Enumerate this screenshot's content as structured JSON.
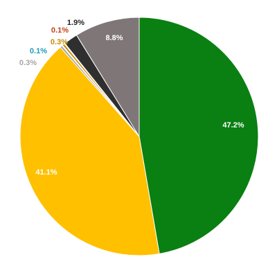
{
  "chart_data": {
    "type": "pie",
    "title": "",
    "series": [
      {
        "labels": [
          "Green slice",
          "Yellow slice",
          "Gray slice",
          "Blue slice",
          "Orange slice",
          "Red slice",
          "Black slice",
          "Dark gray slice"
        ],
        "values": [
          47.2,
          41.1,
          0.3,
          0.1,
          0.3,
          0.1,
          1.9,
          8.8
        ],
        "display_labels": [
          "47.2%",
          "41.1%",
          "0.3%",
          "0.1%",
          "0.3%",
          "0.1%",
          "1.9%",
          "8.8%"
        ],
        "colors": [
          "#0a7f12",
          "#ffc000",
          "#a6a6a6",
          "#1f9bb8",
          "#c98d00",
          "#c53f12",
          "#2f2f2f",
          "#7f7777"
        ],
        "label_colors": [
          "#ffffff",
          "#ffffff",
          "#a6a6a6",
          "#1f9bb8",
          "#c98d00",
          "#c53f12",
          "#222222",
          "#ffffff"
        ]
      }
    ],
    "legend": "none",
    "grid": false
  }
}
